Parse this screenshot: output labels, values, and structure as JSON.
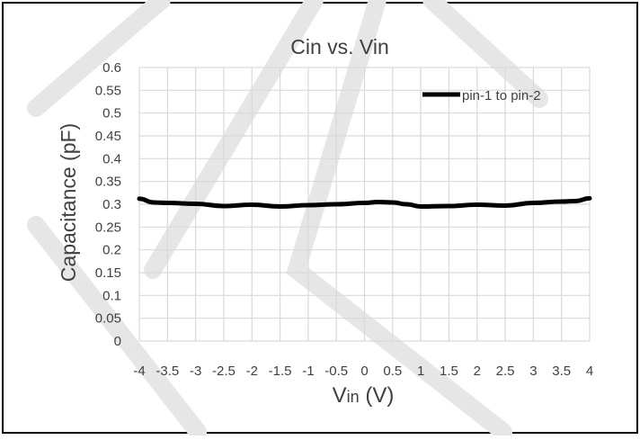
{
  "chart_data": {
    "type": "line",
    "title": "Cin vs. Vin",
    "xlabel": {
      "main": "V",
      "sub": "in",
      "unit": " (V)"
    },
    "ylabel": "Capacitance (pF)",
    "xlim": [
      -4,
      4
    ],
    "ylim": [
      0,
      0.6
    ],
    "grid": true,
    "legend_position": "top-right",
    "x_ticks": [
      "-4",
      "-3.5",
      "-3",
      "-2.5",
      "-2",
      "-1.5",
      "-1",
      "-0.5",
      "0",
      "0.5",
      "1",
      "1.5",
      "2",
      "2.5",
      "3",
      "3.5",
      "4"
    ],
    "y_ticks": [
      "0",
      "0.05",
      "0.1",
      "0.15",
      "0.2",
      "0.25",
      "0.3",
      "0.35",
      "0.4",
      "0.45",
      "0.5",
      "0.55",
      "0.6"
    ],
    "series": [
      {
        "name": "pin-1 to pin-2",
        "color": "#000000",
        "x": [
          -4,
          -3.75,
          -3.5,
          -3,
          -2.5,
          -2,
          -1.5,
          -1,
          -0.5,
          0,
          0.25,
          0.5,
          0.75,
          1,
          1.5,
          2,
          2.5,
          3,
          3.5,
          3.75,
          4
        ],
        "y": [
          0.312,
          0.304,
          0.303,
          0.301,
          0.296,
          0.299,
          0.295,
          0.298,
          0.3,
          0.303,
          0.305,
          0.304,
          0.3,
          0.295,
          0.296,
          0.299,
          0.297,
          0.303,
          0.306,
          0.307,
          0.313
        ]
      }
    ]
  },
  "colors": {
    "grid": "#d9d9d9",
    "axis_text": "#595959",
    "frame": "#000000",
    "watermark": "#e6e6e6"
  }
}
